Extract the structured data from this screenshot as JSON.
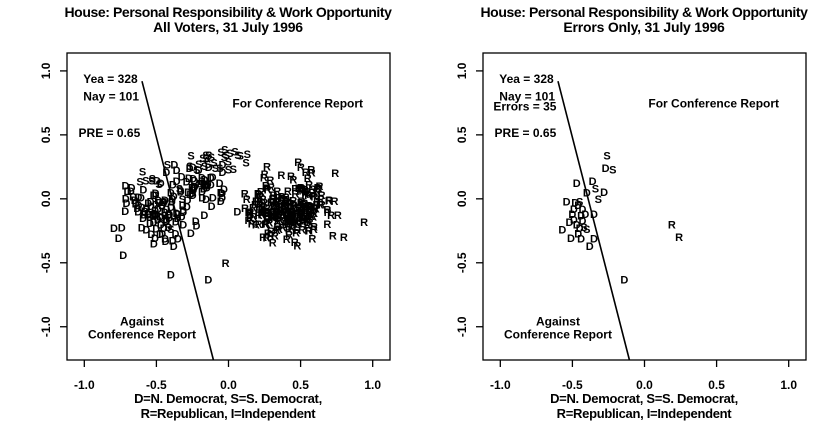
{
  "colors": {
    "yea": "#ff0000",
    "nay": "#0000ff",
    "text": "#000000",
    "background": "#ffffff"
  },
  "chart_data": [
    {
      "type": "scatter",
      "title": "House: Personal Responsibility & Work Opportunity",
      "subtitle": "All Voters, 31 July 1996",
      "xlabel_line1": "D=N. Democrat, S=S. Democrat,",
      "xlabel_line2": "R=Republican, I=Independent",
      "xlim": [
        -1.12,
        1.12
      ],
      "ylim": [
        -1.26,
        1.14
      ],
      "x_tick_values": [
        -1.0,
        -0.5,
        0.0,
        0.5,
        1.0
      ],
      "x_tick_labels": [
        "-1.0",
        "-0.5",
        "0.0",
        "0.5",
        "1.0"
      ],
      "y_tick_values": [
        1.0,
        0.5,
        0.0,
        -0.5,
        -1.0
      ],
      "y_tick_labels": [
        "1.0",
        "0.5",
        "0.0",
        "-0.5",
        "-1.0"
      ],
      "grid": false,
      "seed": 7,
      "stats": [
        {
          "name": "yea-count",
          "text": "Yea =  328",
          "color": "#ff0000",
          "x": -1.007,
          "y": 0.938
        },
        {
          "name": "nay-count",
          "text": "Nay =  101",
          "color": "#0000ff",
          "x": -1.007,
          "y": 0.8
        },
        {
          "name": "pre-value",
          "text": "PRE =  0.65",
          "color": "#000000",
          "x": -1.04,
          "y": 0.516
        }
      ],
      "region_labels": [
        {
          "name": "for-conference-label",
          "lines": [
            "For Conference Report"
          ],
          "x": 0.48,
          "y": 0.745
        },
        {
          "name": "against-conference-label",
          "lines": [
            "Against",
            "Conference Report"
          ],
          "x": -0.6,
          "y": -0.96
        }
      ],
      "cut_line": {
        "x1": -0.6,
        "y1": 0.92,
        "x2": -0.105,
        "y2": -1.258
      },
      "points": [
        {
          "l": "S",
          "c": "nay",
          "x": -0.26,
          "y": 0.34
        },
        {
          "l": "D",
          "c": "nay",
          "x": -0.27,
          "y": 0.24
        },
        {
          "l": "S",
          "c": "nay",
          "x": -0.22,
          "y": 0.23
        },
        {
          "l": "D",
          "c": "nay",
          "x": -0.36,
          "y": 0.14
        },
        {
          "l": "S",
          "c": "nay",
          "x": -0.34,
          "y": 0.08
        },
        {
          "l": "D",
          "c": "nay",
          "x": -0.28,
          "y": 0.055
        },
        {
          "l": "D",
          "c": "nay",
          "x": -0.4,
          "y": 0.05
        },
        {
          "l": "S",
          "c": "nay",
          "x": -0.32,
          "y": 0.0
        },
        {
          "l": "D",
          "c": "nay",
          "x": -0.35,
          "y": -0.12
        },
        {
          "l": "R",
          "c": "nay",
          "x": 0.19,
          "y": -0.2
        },
        {
          "l": "R",
          "c": "nay",
          "x": 0.24,
          "y": -0.3
        },
        {
          "l": "D",
          "c": "nay",
          "x": -0.14,
          "y": -0.63
        },
        {
          "l": "D",
          "c": "nay",
          "x": -0.73,
          "y": -0.44
        },
        {
          "l": "D",
          "c": "nay",
          "x": -0.4,
          "y": -0.59
        },
        {
          "l": "D",
          "c": "yea",
          "x": -0.47,
          "y": 0.125
        },
        {
          "l": "D",
          "c": "yea",
          "x": -0.54,
          "y": -0.02
        },
        {
          "l": "S",
          "c": "yea",
          "x": -0.45,
          "y": -0.02
        },
        {
          "l": "D",
          "c": "yea",
          "x": -0.49,
          "y": -0.08
        },
        {
          "l": "D",
          "c": "yea",
          "x": -0.43,
          "y": -0.08
        },
        {
          "l": "D",
          "c": "yea",
          "x": -0.46,
          "y": -0.05
        },
        {
          "l": "D",
          "c": "yea",
          "x": -0.48,
          "y": -0.03
        },
        {
          "l": "D",
          "c": "yea",
          "x": -0.41,
          "y": -0.12
        },
        {
          "l": "D",
          "c": "yea",
          "x": -0.5,
          "y": -0.12
        },
        {
          "l": "D",
          "c": "yea",
          "x": -0.44,
          "y": -0.13
        },
        {
          "l": "D",
          "c": "yea",
          "x": -0.49,
          "y": -0.16
        },
        {
          "l": "D",
          "c": "yea",
          "x": -0.43,
          "y": -0.17
        },
        {
          "l": "D",
          "c": "yea",
          "x": -0.52,
          "y": -0.18
        },
        {
          "l": "D",
          "c": "yea",
          "x": -0.47,
          "y": -0.2
        },
        {
          "l": "S",
          "c": "yea",
          "x": -0.42,
          "y": -0.22
        },
        {
          "l": "D",
          "c": "yea",
          "x": -0.57,
          "y": -0.24
        },
        {
          "l": "S",
          "c": "yea",
          "x": -0.4,
          "y": -0.235
        },
        {
          "l": "D",
          "c": "yea",
          "x": -0.45,
          "y": -0.23
        },
        {
          "l": "D",
          "c": "yea",
          "x": -0.46,
          "y": -0.27
        },
        {
          "l": "D",
          "c": "yea",
          "x": -0.51,
          "y": -0.305
        },
        {
          "l": "D",
          "c": "yea",
          "x": -0.44,
          "y": -0.31
        },
        {
          "l": "D",
          "c": "yea",
          "x": -0.35,
          "y": -0.31
        },
        {
          "l": "D",
          "c": "yea",
          "x": -0.38,
          "y": -0.37
        },
        {
          "l": "R",
          "c": "yea",
          "x": -0.02,
          "y": -0.5
        },
        {
          "l": "R",
          "c": "yea",
          "x": 0.94,
          "y": -0.18
        },
        {
          "l": "R",
          "c": "yea",
          "x": 0.8,
          "y": -0.3
        },
        {
          "l": "R",
          "c": "yea",
          "x": 0.74,
          "y": 0.2
        },
        {
          "l": "S",
          "c": "yea",
          "x": 0.13,
          "y": 0.35
        }
      ],
      "clusters": [
        {
          "l": "D",
          "c": "nay",
          "n": 80,
          "cx": -0.5,
          "cy": -0.08,
          "sx": 0.14,
          "sy": 0.12,
          "xr": [
            -0.8,
            -0.13
          ],
          "yr": [
            -0.44,
            0.26
          ]
        },
        {
          "l": "S",
          "c": "nay",
          "n": 7,
          "cx": -0.5,
          "cy": 0.17,
          "sx": 0.09,
          "sy": 0.08,
          "xr": [
            -0.65,
            -0.3
          ],
          "yr": [
            0.02,
            0.33
          ]
        },
        {
          "l": "D",
          "c": "yea",
          "n": 48,
          "cx": -0.17,
          "cy": 0.1,
          "sx": 0.11,
          "sy": 0.12,
          "xr": [
            -0.4,
            0.1
          ],
          "yr": [
            -0.22,
            0.33
          ]
        },
        {
          "l": "S",
          "c": "yea",
          "n": 24,
          "cx": -0.08,
          "cy": 0.31,
          "sx": 0.13,
          "sy": 0.05,
          "xr": [
            -0.3,
            0.16
          ],
          "yr": [
            0.22,
            0.4
          ]
        },
        {
          "l": "R",
          "c": "yea",
          "n": 228,
          "cx": 0.42,
          "cy": -0.07,
          "sx": 0.14,
          "sy": 0.13,
          "xr": [
            0.07,
            0.78
          ],
          "yr": [
            -0.47,
            0.3
          ]
        }
      ]
    },
    {
      "type": "scatter",
      "title": "House: Personal Responsibility & Work Opportunity",
      "subtitle": "Errors Only, 31 July 1996",
      "xlabel_line1": "D=N. Democrat, S=S. Democrat,",
      "xlabel_line2": "R=Republican, I=Independent",
      "xlim": [
        -1.12,
        1.12
      ],
      "ylim": [
        -1.26,
        1.14
      ],
      "x_tick_values": [
        -1.0,
        -0.5,
        0.0,
        0.5,
        1.0
      ],
      "x_tick_labels": [
        "-1.0",
        "-0.5",
        "0.0",
        "0.5",
        "1.0"
      ],
      "y_tick_values": [
        1.0,
        0.5,
        0.0,
        -0.5,
        -1.0
      ],
      "y_tick_labels": [
        "1.0",
        "0.5",
        "0.0",
        "-0.5",
        "-1.0"
      ],
      "grid": false,
      "seed": 11,
      "stats": [
        {
          "name": "yea-count",
          "text": "Yea =  328",
          "color": "#ff0000",
          "x": -1.007,
          "y": 0.938
        },
        {
          "name": "nay-count",
          "text": "Nay =  101",
          "color": "#0000ff",
          "x": -1.007,
          "y": 0.8
        },
        {
          "name": "errors-count",
          "text": "Errors =  35",
          "color": "#000000",
          "x": -1.048,
          "y": 0.721
        },
        {
          "name": "pre-value",
          "text": "PRE =  0.65",
          "color": "#000000",
          "x": -1.04,
          "y": 0.516
        }
      ],
      "region_labels": [
        {
          "name": "for-conference-label",
          "lines": [
            "For Conference Report"
          ],
          "x": 0.48,
          "y": 0.745
        },
        {
          "name": "against-conference-label",
          "lines": [
            "Against",
            "Conference Report"
          ],
          "x": -0.6,
          "y": -0.96
        }
      ],
      "cut_line": {
        "x1": -0.6,
        "y1": 0.92,
        "x2": -0.105,
        "y2": -1.258
      },
      "points": [
        {
          "l": "S",
          "c": "nay",
          "x": -0.26,
          "y": 0.34
        },
        {
          "l": "D",
          "c": "nay",
          "x": -0.27,
          "y": 0.24
        },
        {
          "l": "S",
          "c": "nay",
          "x": -0.22,
          "y": 0.23
        },
        {
          "l": "D",
          "c": "nay",
          "x": -0.36,
          "y": 0.14
        },
        {
          "l": "S",
          "c": "nay",
          "x": -0.34,
          "y": 0.08
        },
        {
          "l": "D",
          "c": "nay",
          "x": -0.28,
          "y": 0.055
        },
        {
          "l": "D",
          "c": "nay",
          "x": -0.4,
          "y": 0.05
        },
        {
          "l": "S",
          "c": "nay",
          "x": -0.32,
          "y": 0.0
        },
        {
          "l": "D",
          "c": "nay",
          "x": -0.35,
          "y": -0.12
        },
        {
          "l": "R",
          "c": "nay",
          "x": 0.19,
          "y": -0.2
        },
        {
          "l": "R",
          "c": "nay",
          "x": 0.24,
          "y": -0.3
        },
        {
          "l": "D",
          "c": "nay",
          "x": -0.14,
          "y": -0.63
        },
        {
          "l": "D",
          "c": "yea",
          "x": -0.47,
          "y": 0.125
        },
        {
          "l": "D",
          "c": "yea",
          "x": -0.54,
          "y": -0.02
        },
        {
          "l": "S",
          "c": "yea",
          "x": -0.45,
          "y": -0.02
        },
        {
          "l": "D",
          "c": "yea",
          "x": -0.49,
          "y": -0.08
        },
        {
          "l": "D",
          "c": "yea",
          "x": -0.43,
          "y": -0.08
        },
        {
          "l": "D",
          "c": "yea",
          "x": -0.46,
          "y": -0.05
        },
        {
          "l": "D",
          "c": "yea",
          "x": -0.48,
          "y": -0.03
        },
        {
          "l": "D",
          "c": "yea",
          "x": -0.41,
          "y": -0.12
        },
        {
          "l": "D",
          "c": "yea",
          "x": -0.5,
          "y": -0.12
        },
        {
          "l": "D",
          "c": "yea",
          "x": -0.44,
          "y": -0.13
        },
        {
          "l": "D",
          "c": "yea",
          "x": -0.49,
          "y": -0.16
        },
        {
          "l": "D",
          "c": "yea",
          "x": -0.43,
          "y": -0.17
        },
        {
          "l": "D",
          "c": "yea",
          "x": -0.52,
          "y": -0.18
        },
        {
          "l": "D",
          "c": "yea",
          "x": -0.47,
          "y": -0.2
        },
        {
          "l": "S",
          "c": "yea",
          "x": -0.42,
          "y": -0.22
        },
        {
          "l": "D",
          "c": "yea",
          "x": -0.57,
          "y": -0.24
        },
        {
          "l": "S",
          "c": "yea",
          "x": -0.4,
          "y": -0.235
        },
        {
          "l": "D",
          "c": "yea",
          "x": -0.45,
          "y": -0.23
        },
        {
          "l": "D",
          "c": "yea",
          "x": -0.46,
          "y": -0.27
        },
        {
          "l": "D",
          "c": "yea",
          "x": -0.51,
          "y": -0.305
        },
        {
          "l": "D",
          "c": "yea",
          "x": -0.44,
          "y": -0.31
        },
        {
          "l": "D",
          "c": "yea",
          "x": -0.35,
          "y": -0.31
        },
        {
          "l": "D",
          "c": "yea",
          "x": -0.38,
          "y": -0.37
        }
      ],
      "clusters": []
    }
  ]
}
